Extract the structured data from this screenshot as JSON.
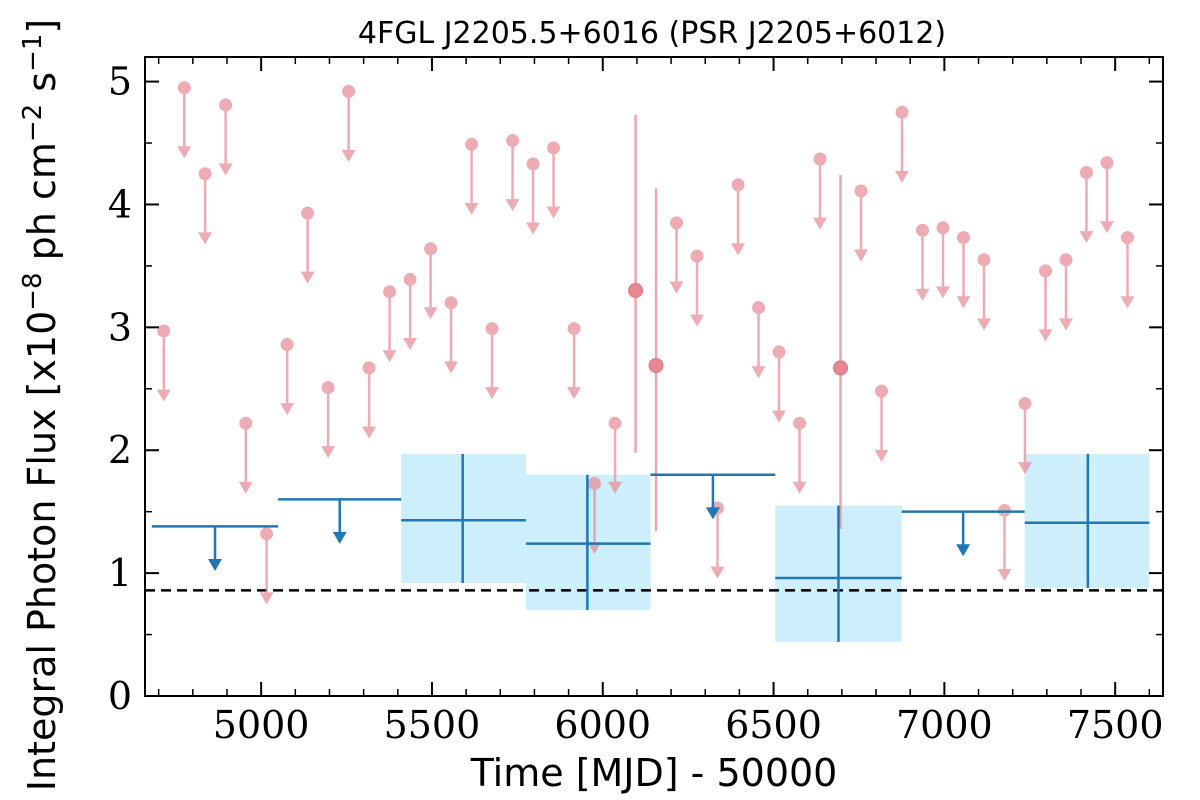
{
  "chart_data": {
    "type": "scatter",
    "title": "4FGL J2205.5+6016 (PSR J2205+6012)",
    "xlabel": "Time [MJD] - 50000",
    "ylabel_html": "Integral Photon Flux [x10",
    "ylabel_exp1": "−8",
    "ylabel_mid": " ph cm",
    "ylabel_exp2": "−2",
    "ylabel_tail": " s",
    "ylabel_exp3": "−1",
    "ylabel_end": "]",
    "xlim": [
      4660,
      7640
    ],
    "ylim": [
      0,
      5.2
    ],
    "xticks": [
      5000,
      5500,
      6000,
      6500,
      7000,
      7500
    ],
    "yticks": [
      0,
      1,
      2,
      3,
      4,
      5
    ],
    "reference_level": 0.86,
    "colors": {
      "monthly": "#e8909a",
      "yearly": "#1f77b4",
      "band": "#cdeefb",
      "reference": "#000000"
    },
    "monthly_upper_limits": [
      {
        "x": 4715,
        "y": 2.97
      },
      {
        "x": 4775,
        "y": 4.95
      },
      {
        "x": 4836,
        "y": 4.25
      },
      {
        "x": 4896,
        "y": 4.81
      },
      {
        "x": 4955,
        "y": 2.22
      },
      {
        "x": 5016,
        "y": 1.32
      },
      {
        "x": 5076,
        "y": 2.86
      },
      {
        "x": 5136,
        "y": 3.93
      },
      {
        "x": 5196,
        "y": 2.51
      },
      {
        "x": 5256,
        "y": 4.92
      },
      {
        "x": 5316,
        "y": 2.67
      },
      {
        "x": 5376,
        "y": 3.29
      },
      {
        "x": 5436,
        "y": 3.39
      },
      {
        "x": 5496,
        "y": 3.64
      },
      {
        "x": 5556,
        "y": 3.2
      },
      {
        "x": 5616,
        "y": 4.49
      },
      {
        "x": 5676,
        "y": 2.99
      },
      {
        "x": 5736,
        "y": 4.52
      },
      {
        "x": 5796,
        "y": 4.33
      },
      {
        "x": 5856,
        "y": 4.46
      },
      {
        "x": 5916,
        "y": 2.99
      },
      {
        "x": 5976,
        "y": 1.73
      },
      {
        "x": 6036,
        "y": 2.22
      },
      {
        "x": 6216,
        "y": 3.85
      },
      {
        "x": 6276,
        "y": 3.58
      },
      {
        "x": 6336,
        "y": 1.53
      },
      {
        "x": 6396,
        "y": 4.16
      },
      {
        "x": 6456,
        "y": 3.16
      },
      {
        "x": 6516,
        "y": 2.8
      },
      {
        "x": 6576,
        "y": 2.22
      },
      {
        "x": 6636,
        "y": 4.37
      },
      {
        "x": 6756,
        "y": 4.11
      },
      {
        "x": 6816,
        "y": 2.48
      },
      {
        "x": 6876,
        "y": 4.75
      },
      {
        "x": 6936,
        "y": 3.79
      },
      {
        "x": 6996,
        "y": 3.81
      },
      {
        "x": 7056,
        "y": 3.73
      },
      {
        "x": 7116,
        "y": 3.55
      },
      {
        "x": 7176,
        "y": 1.51
      },
      {
        "x": 7236,
        "y": 2.38
      },
      {
        "x": 7296,
        "y": 3.46
      },
      {
        "x": 7356,
        "y": 3.55
      },
      {
        "x": 7416,
        "y": 4.26
      },
      {
        "x": 7476,
        "y": 4.34
      },
      {
        "x": 7536,
        "y": 3.73
      }
    ],
    "monthly_detections": [
      {
        "x": 6096,
        "y": 3.3,
        "ylo": 1.98,
        "yhi": 4.73
      },
      {
        "x": 6156,
        "y": 2.69,
        "ylo": 1.34,
        "yhi": 4.13
      },
      {
        "x": 6696,
        "y": 2.67,
        "ylo": 1.36,
        "yhi": 4.24
      }
    ],
    "yearly_upper_limits": [
      {
        "x0": 4680,
        "x1": 5050,
        "y": 1.38
      },
      {
        "x0": 5050,
        "x1": 5410,
        "y": 1.6
      },
      {
        "x0": 6140,
        "x1": 6505,
        "y": 1.8
      },
      {
        "x0": 6875,
        "x1": 7235,
        "y": 1.5
      }
    ],
    "yearly_detections": [
      {
        "x": 5590,
        "x0": 5410,
        "x1": 5775,
        "y": 1.43,
        "ylo": 0.92,
        "yhi": 1.97
      },
      {
        "x": 5955,
        "x0": 5775,
        "x1": 6140,
        "y": 1.24,
        "ylo": 0.7,
        "yhi": 1.8
      },
      {
        "x": 6690,
        "x0": 6505,
        "x1": 6875,
        "y": 0.96,
        "ylo": 0.44,
        "yhi": 1.55
      },
      {
        "x": 7420,
        "x0": 7235,
        "x1": 7600,
        "y": 1.41,
        "ylo": 0.88,
        "yhi": 1.97
      }
    ]
  }
}
